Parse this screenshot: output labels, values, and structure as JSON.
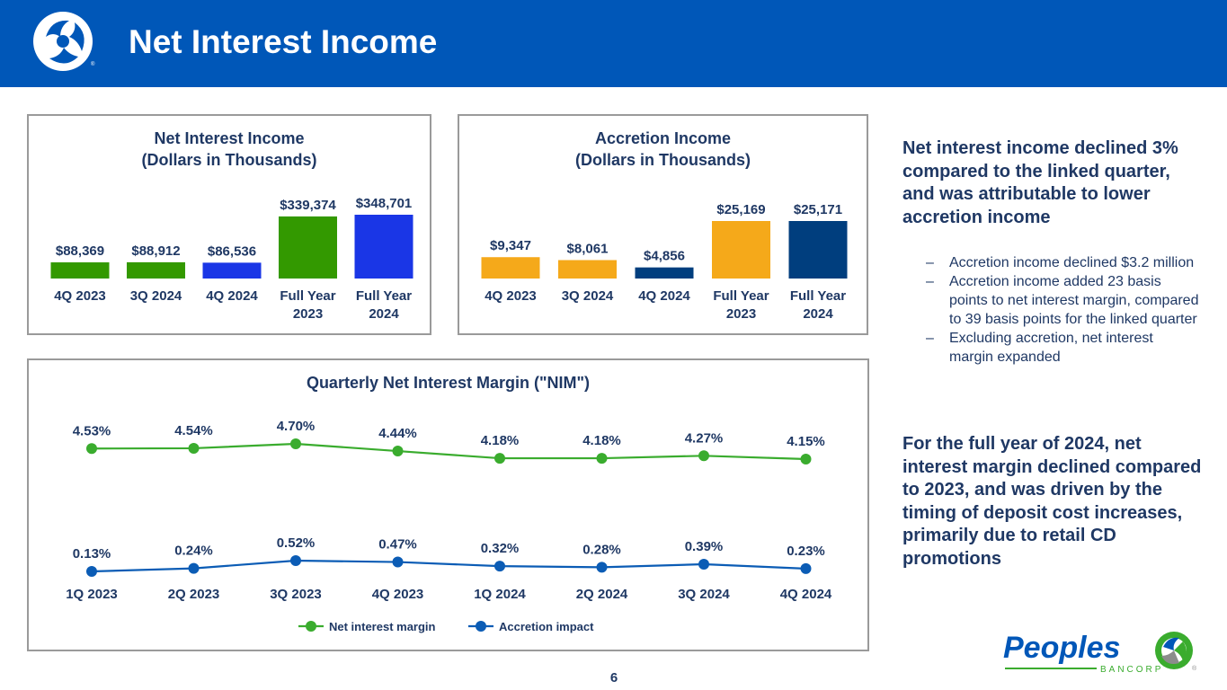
{
  "page": {
    "title": "Net Interest Income",
    "page_number": "6",
    "brand": {
      "name": "Peoples",
      "sub": "BANCORP",
      "mark": "®"
    }
  },
  "colors": {
    "blue_header": "#0057b8",
    "navy": "#1f3864",
    "green": "#339900",
    "bright_blue": "#1a36e6",
    "gold": "#f5a91a",
    "dark_navy": "#003e7e",
    "nim_line": "#3aac2e",
    "accretion_line": "#0b5cb5"
  },
  "side": {
    "heading1": "Net interest income declined 3% compared to the linked quarter, and was attributable to lower accretion income",
    "bullets": [
      "Accretion income declined $3.2 million",
      "Accretion income added 23 basis points to net interest margin, compared to 39 basis points for the linked quarter",
      "Excluding accretion, net interest margin expanded"
    ],
    "heading2": "For the full year of 2024, net interest margin declined compared to 2023, and was driven by the timing of deposit cost increases, primarily due to retail CD promotions"
  },
  "chart_data": [
    {
      "type": "bar",
      "title": "Net Interest Income",
      "subtitle": "(Dollars in Thousands)",
      "categories": [
        [
          "4Q 2023"
        ],
        [
          "3Q 2024"
        ],
        [
          "4Q 2024"
        ],
        [
          "Full Year",
          "2023"
        ],
        [
          "Full Year",
          "2024"
        ]
      ],
      "values": [
        88369,
        88912,
        86536,
        339374,
        348701
      ],
      "labels": [
        "$88,369",
        "$88,912",
        "$86,536",
        "$339,374",
        "$348,701"
      ],
      "colors": [
        "#339900",
        "#339900",
        "#1a36e6",
        "#339900",
        "#1a36e6"
      ],
      "ylim": [
        0,
        348701
      ]
    },
    {
      "type": "bar",
      "title": "Accretion Income",
      "subtitle": "(Dollars in Thousands)",
      "categories": [
        [
          "4Q 2023"
        ],
        [
          "3Q 2024"
        ],
        [
          "4Q 2024"
        ],
        [
          "Full Year",
          "2023"
        ],
        [
          "Full Year",
          "2024"
        ]
      ],
      "values": [
        9347,
        8061,
        4856,
        25169,
        25171
      ],
      "labels": [
        "$9,347",
        "$8,061",
        "$4,856",
        "$25,169",
        "$25,171"
      ],
      "colors": [
        "#f5a91a",
        "#f5a91a",
        "#003e7e",
        "#f5a91a",
        "#003e7e"
      ],
      "ylim": [
        0,
        25171
      ]
    },
    {
      "type": "line",
      "title": "Quarterly Net Interest Margin (\"NIM\")",
      "x": [
        "1Q 2023",
        "2Q 2023",
        "3Q 2023",
        "4Q 2023",
        "1Q 2024",
        "2Q 2024",
        "3Q 2024",
        "4Q 2024"
      ],
      "series": [
        {
          "name": "Net interest margin",
          "values": [
            4.53,
            4.54,
            4.7,
            4.44,
            4.18,
            4.18,
            4.27,
            4.15
          ],
          "labels": [
            "4.53%",
            "4.54%",
            "4.70%",
            "4.44%",
            "4.18%",
            "4.18%",
            "4.27%",
            "4.15%"
          ],
          "color": "#3aac2e"
        },
        {
          "name": "Accretion impact",
          "values": [
            0.13,
            0.24,
            0.52,
            0.47,
            0.32,
            0.28,
            0.39,
            0.23
          ],
          "labels": [
            "0.13%",
            "0.24%",
            "0.52%",
            "0.47%",
            "0.32%",
            "0.28%",
            "0.39%",
            "0.23%"
          ],
          "color": "#0b5cb5"
        }
      ],
      "legend": "bottom-center"
    }
  ]
}
